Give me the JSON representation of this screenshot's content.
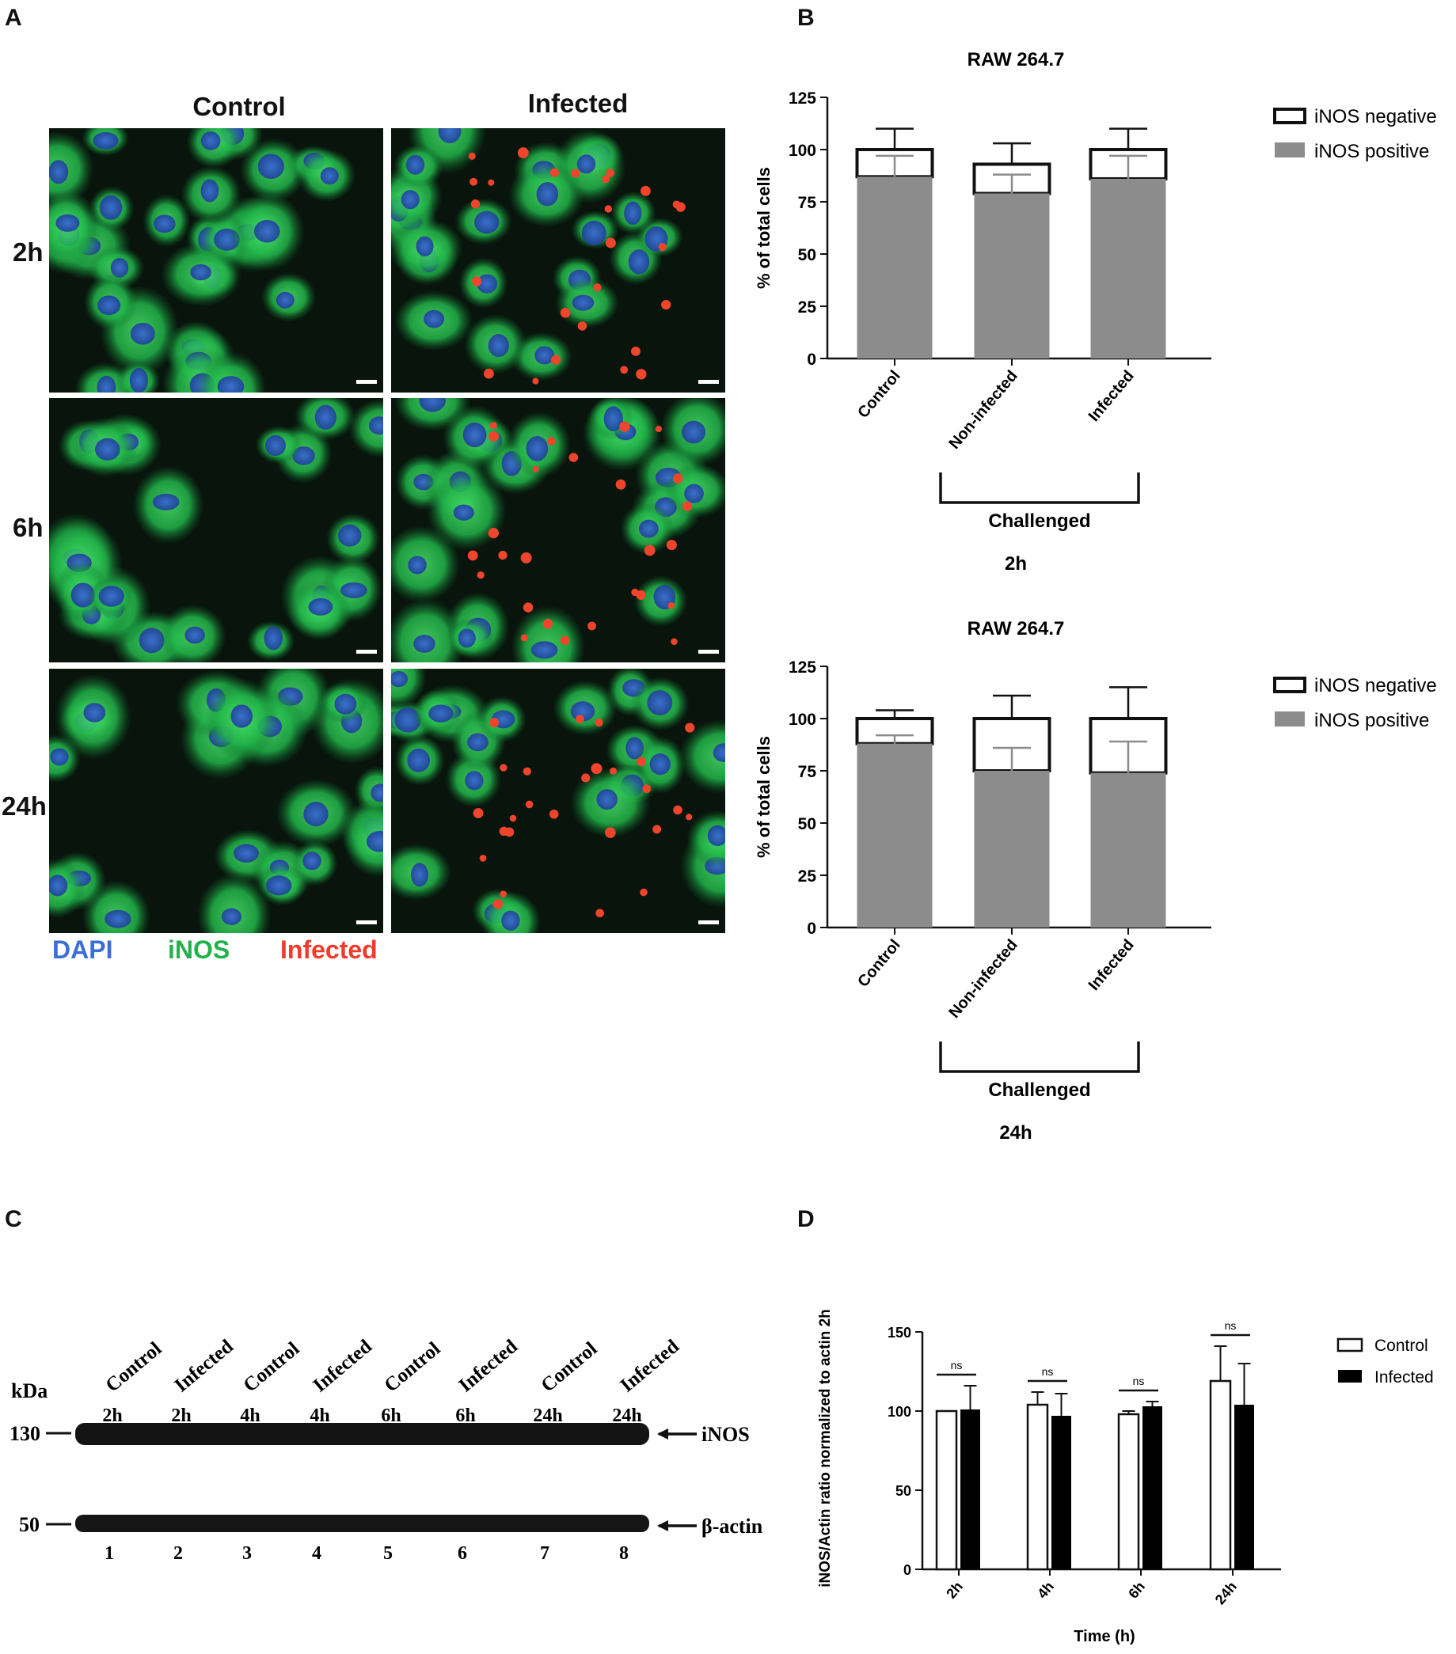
{
  "panels": {
    "a": "A",
    "b": "B",
    "c": "C",
    "d": "D"
  },
  "panel_a": {
    "columns": [
      "Control",
      "Infected"
    ],
    "rows": [
      "2h",
      "6h",
      "24h"
    ],
    "legend": [
      {
        "label": "DAPI",
        "color": "#3b6fd6"
      },
      {
        "label": "iNOS",
        "color": "#22b24c"
      },
      {
        "label": "Infected",
        "color": "#f03a2a"
      }
    ]
  },
  "panel_b_2h": {
    "title": "RAW 264.7",
    "ylabel": "% of total cells",
    "bracket_label": "Challenged",
    "time_label": "2h",
    "legend": [
      {
        "label": "iNOS negative"
      },
      {
        "label": "iNOS positive"
      }
    ]
  },
  "panel_b_24h": {
    "title": "RAW 264.7",
    "ylabel": "% of total cells",
    "bracket_label": "Challenged",
    "time_label": "24h",
    "legend": [
      {
        "label": "iNOS negative"
      },
      {
        "label": "iNOS positive"
      }
    ]
  },
  "panel_c": {
    "kda_label": "kDa",
    "lanes": [
      {
        "cond": "Control",
        "time": "2h",
        "num": "1"
      },
      {
        "cond": "Infected",
        "time": "2h",
        "num": "2"
      },
      {
        "cond": "Control",
        "time": "4h",
        "num": "3"
      },
      {
        "cond": "Infected",
        "time": "4h",
        "num": "4"
      },
      {
        "cond": "Control",
        "time": "6h",
        "num": "5"
      },
      {
        "cond": "Infected",
        "time": "6h",
        "num": "6"
      },
      {
        "cond": "Control",
        "time": "24h",
        "num": "7"
      },
      {
        "cond": "Infected",
        "time": "24h",
        "num": "8"
      }
    ],
    "markers": [
      {
        "label": "130"
      },
      {
        "label": "50"
      }
    ],
    "band_labels": [
      "iNOS",
      "β-actin"
    ]
  },
  "panel_d": {
    "ylabel": "iNOS/Actin ratio normalized to actin 2h",
    "xlabel": "Time (h)",
    "legend": [
      {
        "label": "Control"
      },
      {
        "label": "Infected"
      }
    ],
    "sig_label": "ns"
  },
  "chart_data": [
    {
      "type": "bar",
      "stacked": true,
      "title": "RAW 264.7",
      "subtitle": "2h",
      "ylabel": "% of total cells",
      "ylim": [
        0,
        125
      ],
      "yticks": [
        0,
        25,
        50,
        75,
        100,
        125
      ],
      "categories": [
        "Control",
        "Non-infected",
        "Infected"
      ],
      "group_label": "Challenged",
      "series": [
        {
          "name": "iNOS positive",
          "values": [
            87,
            79,
            86
          ],
          "error": [
            10,
            9,
            11
          ],
          "color": "#8c8c8c"
        },
        {
          "name": "iNOS negative",
          "values": [
            13,
            14,
            14
          ],
          "error": [
            10,
            10,
            10
          ],
          "color": "#ffffff"
        }
      ]
    },
    {
      "type": "bar",
      "stacked": true,
      "title": "RAW 264.7",
      "subtitle": "24h",
      "ylabel": "% of total cells",
      "ylim": [
        0,
        125
      ],
      "yticks": [
        0,
        25,
        50,
        75,
        100,
        125
      ],
      "categories": [
        "Control",
        "Non-infected",
        "Infected"
      ],
      "group_label": "Challenged",
      "series": [
        {
          "name": "iNOS positive",
          "values": [
            88,
            75,
            74
          ],
          "error": [
            4,
            11,
            15
          ],
          "color": "#8c8c8c"
        },
        {
          "name": "iNOS negative",
          "values": [
            12,
            25,
            26
          ],
          "error": [
            4,
            11,
            15
          ],
          "color": "#ffffff"
        }
      ]
    },
    {
      "type": "bar",
      "xlabel": "Time (h)",
      "ylabel": "iNOS/Actin ratio normalized to actin 2h",
      "ylim": [
        0,
        150
      ],
      "yticks": [
        0,
        50,
        100,
        150
      ],
      "categories": [
        "2h",
        "4h",
        "6h",
        "24h"
      ],
      "series": [
        {
          "name": "Control",
          "values": [
            100,
            104,
            98,
            119
          ],
          "error": [
            0,
            8,
            2,
            22
          ],
          "color": "#ffffff"
        },
        {
          "name": "Infected",
          "values": [
            101,
            97,
            103,
            104
          ],
          "error": [
            15,
            14,
            3,
            26
          ],
          "color": "#000000"
        }
      ],
      "annotations": [
        "ns",
        "ns",
        "ns",
        "ns"
      ]
    }
  ]
}
